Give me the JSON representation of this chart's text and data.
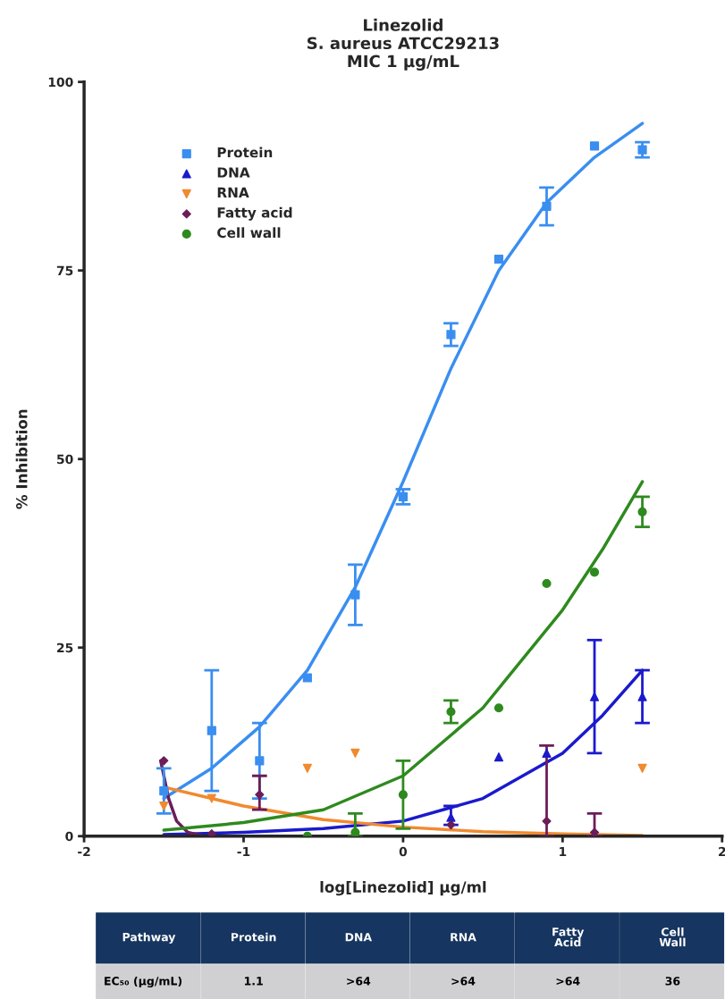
{
  "chart_data": {
    "type": "scatter",
    "title": "Linezolid\nS. aureus ATCC29213\nMIC 1 μg/mL",
    "xlabel": "log[Linezolid] μg/ml",
    "ylabel": "% Inhibition",
    "x": [
      -1.5,
      -1.2,
      -0.9,
      -0.6,
      -0.3,
      0,
      0.3,
      0.6,
      0.9,
      1.2,
      1.5
    ],
    "series": [
      {
        "name": "Protein",
        "color": "#3a8ef0",
        "marker": "square",
        "values": [
          6,
          14,
          10,
          21,
          32,
          45,
          66.5,
          76.5,
          83.5,
          91.5,
          91
        ],
        "errors": [
          3,
          8,
          5,
          null,
          4,
          1,
          1.5,
          null,
          2.5,
          null,
          1
        ]
      },
      {
        "name": "DNA",
        "color": "#1a1acc",
        "marker": "triangle",
        "values": [
          null,
          null,
          null,
          null,
          null,
          null,
          2.5,
          10.5,
          11,
          18.5,
          18.5
        ],
        "errors": [
          null,
          null,
          null,
          null,
          null,
          null,
          [
            1.5,
            4
          ],
          null,
          null,
          [
            11,
            26
          ],
          [
            15,
            22
          ]
        ]
      },
      {
        "name": "RNA",
        "color": "#f08a30",
        "marker": "triangle_down",
        "values": [
          4,
          5,
          null,
          9,
          11,
          null,
          null,
          null,
          null,
          null,
          9
        ]
      },
      {
        "name": "Fatty acid",
        "color": "#6b1d5a",
        "marker": "diamond",
        "values": [
          10,
          0.3,
          5.5,
          null,
          null,
          null,
          1.5,
          null,
          2,
          0.5,
          null
        ],
        "errors": [
          null,
          null,
          [
            3.5,
            8
          ],
          null,
          null,
          null,
          null,
          null,
          [
            0,
            12
          ],
          [
            0,
            3
          ],
          null
        ]
      },
      {
        "name": "Cell wall",
        "color": "#2e8a1e",
        "marker": "circle",
        "values": [
          null,
          null,
          null,
          0,
          0.5,
          5.5,
          16.5,
          17,
          33.5,
          35,
          43
        ],
        "errors": [
          null,
          null,
          null,
          null,
          [
            0,
            3
          ],
          [
            1,
            10
          ],
          [
            15,
            18
          ],
          null,
          null,
          null,
          [
            41,
            45
          ]
        ]
      },
      {
        "type": "line",
        "color": "#3a8ef0",
        "x": [
          -1.5,
          -1.2,
          -0.9,
          -0.6,
          -0.3,
          0,
          0.3,
          0.6,
          0.9,
          1.2,
          1.5
        ],
        "values": [
          5,
          9,
          14.5,
          22,
          33,
          47,
          62,
          75,
          84,
          90,
          94.5
        ]
      },
      {
        "type": "line",
        "color": "#1a1acc",
        "x": [
          -1.5,
          -1,
          -0.5,
          0,
          0.5,
          1,
          1.25,
          1.5
        ],
        "values": [
          0.2,
          0.5,
          1,
          2,
          5,
          11,
          16,
          22
        ]
      },
      {
        "type": "line",
        "color": "#f08a30",
        "x": [
          -1.5,
          -1,
          -0.5,
          0,
          0.5,
          1,
          1.5
        ],
        "values": [
          6.5,
          4,
          2.2,
          1.2,
          0.6,
          0.3,
          0.1
        ]
      },
      {
        "type": "line",
        "color": "#6b1d5a",
        "x": [
          -1.52,
          -1.47,
          -1.42,
          -1.35,
          -1.25,
          -1.2
        ],
        "values": [
          10,
          5,
          2,
          0.5,
          0,
          0
        ]
      },
      {
        "type": "line",
        "color": "#2e8a1e",
        "x": [
          -1.5,
          -1,
          -0.5,
          0,
          0.5,
          1,
          1.25,
          1.5
        ],
        "values": [
          0.8,
          1.8,
          3.5,
          8,
          17,
          30,
          38,
          47
        ]
      }
    ],
    "xlim": [
      -2,
      2
    ],
    "xticks": [
      -2,
      -1,
      0,
      1,
      2
    ],
    "ylim": [
      0,
      100
    ],
    "yticks": [
      0,
      25,
      50,
      75,
      100
    ],
    "grid": false,
    "legend": "top left",
    "line_style": "solid",
    "annotations": [
      "Pathway",
      "Protein",
      "DNA",
      "RNA",
      "Fatty\nAcid",
      "Cell\nWall",
      "EC₅₀ (μg/mL)",
      "1.1",
      ">64",
      ">64",
      ">64",
      "36"
    ]
  }
}
